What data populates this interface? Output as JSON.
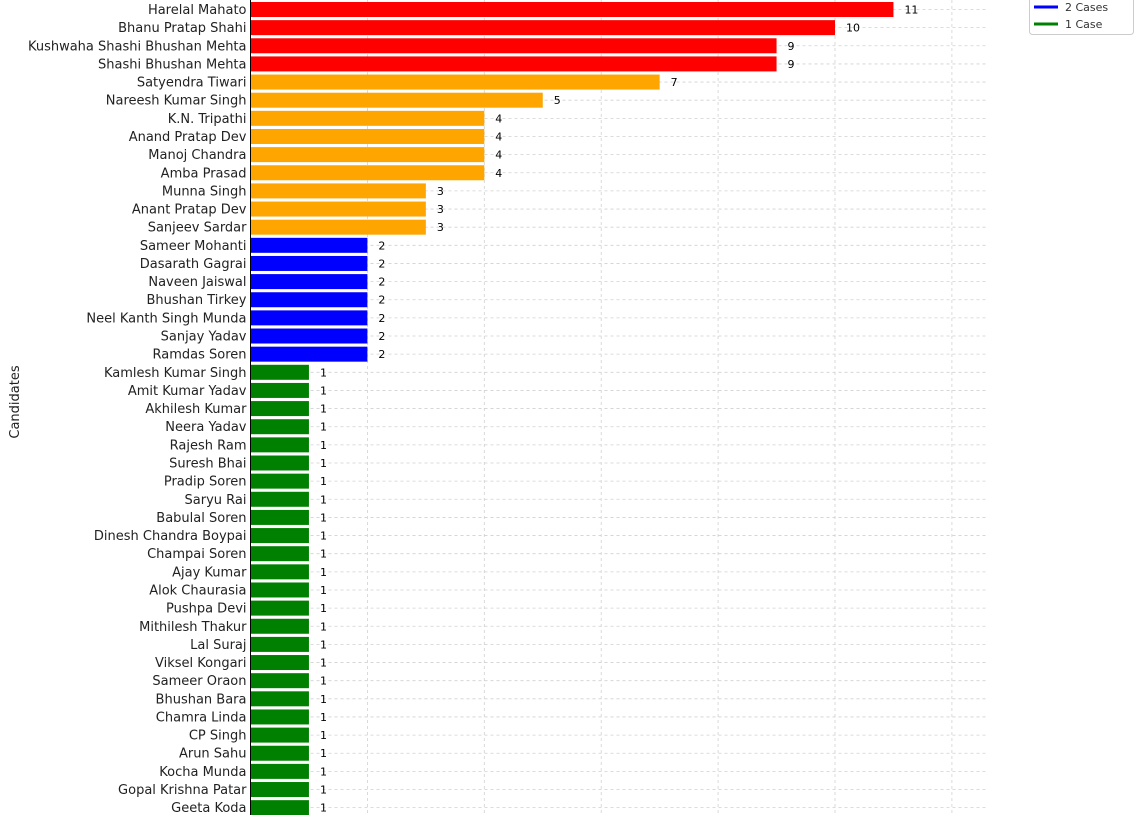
{
  "chart_data": {
    "type": "bar",
    "orientation": "horizontal",
    "ylabel": "Candidates",
    "xlim": [
      0,
      12.6
    ],
    "grid": true,
    "legend_placement": "top-right",
    "legend": [
      {
        "label": "2 Cases",
        "color": "#0000ff"
      },
      {
        "label": "1 Case",
        "color": "#008000"
      }
    ],
    "colors": {
      "high": "#ff0000",
      "mid": "#ffa500",
      "two": "#0000ff",
      "one": "#008000"
    },
    "categories": [
      "Harelal Mahato",
      "Bhanu Pratap Shahi",
      "Kushwaha Shashi Bhushan Mehta",
      "Shashi Bhushan Mehta",
      "Satyendra Tiwari",
      "Nareesh Kumar Singh",
      "K.N. Tripathi",
      "Anand Pratap Dev",
      "Manoj Chandra",
      "Amba Prasad",
      "Munna Singh",
      "Anant Pratap Dev",
      "Sanjeev Sardar",
      "Sameer Mohanti",
      "Dasarath Gagrai",
      "Naveen Jaiswal",
      "Bhushan Tirkey",
      "Neel Kanth Singh Munda",
      "Sanjay Yadav",
      "Ramdas Soren",
      "Kamlesh Kumar Singh",
      "Amit Kumar Yadav",
      "Akhilesh Kumar",
      "Neera Yadav",
      "Rajesh Ram",
      "Suresh Bhai",
      "Pradip Soren",
      "Saryu Rai",
      "Babulal Soren",
      "Dinesh Chandra Boypai",
      "Champai Soren",
      "Ajay Kumar",
      "Alok Chaurasia",
      "Pushpa Devi",
      "Mithilesh Thakur",
      "Lal Suraj",
      "Viksel Kongari",
      "Sameer Oraon",
      "Bhushan Bara",
      "Chamra Linda",
      "CP Singh",
      "Arun Sahu",
      "Kocha Munda",
      "Gopal Krishna Patar",
      "Geeta Koda"
    ],
    "values": [
      11,
      10,
      9,
      9,
      7,
      5,
      4,
      4,
      4,
      4,
      3,
      3,
      3,
      2,
      2,
      2,
      2,
      2,
      2,
      2,
      1,
      1,
      1,
      1,
      1,
      1,
      1,
      1,
      1,
      1,
      1,
      1,
      1,
      1,
      1,
      1,
      1,
      1,
      1,
      1,
      1,
      1,
      1,
      1,
      1
    ]
  }
}
